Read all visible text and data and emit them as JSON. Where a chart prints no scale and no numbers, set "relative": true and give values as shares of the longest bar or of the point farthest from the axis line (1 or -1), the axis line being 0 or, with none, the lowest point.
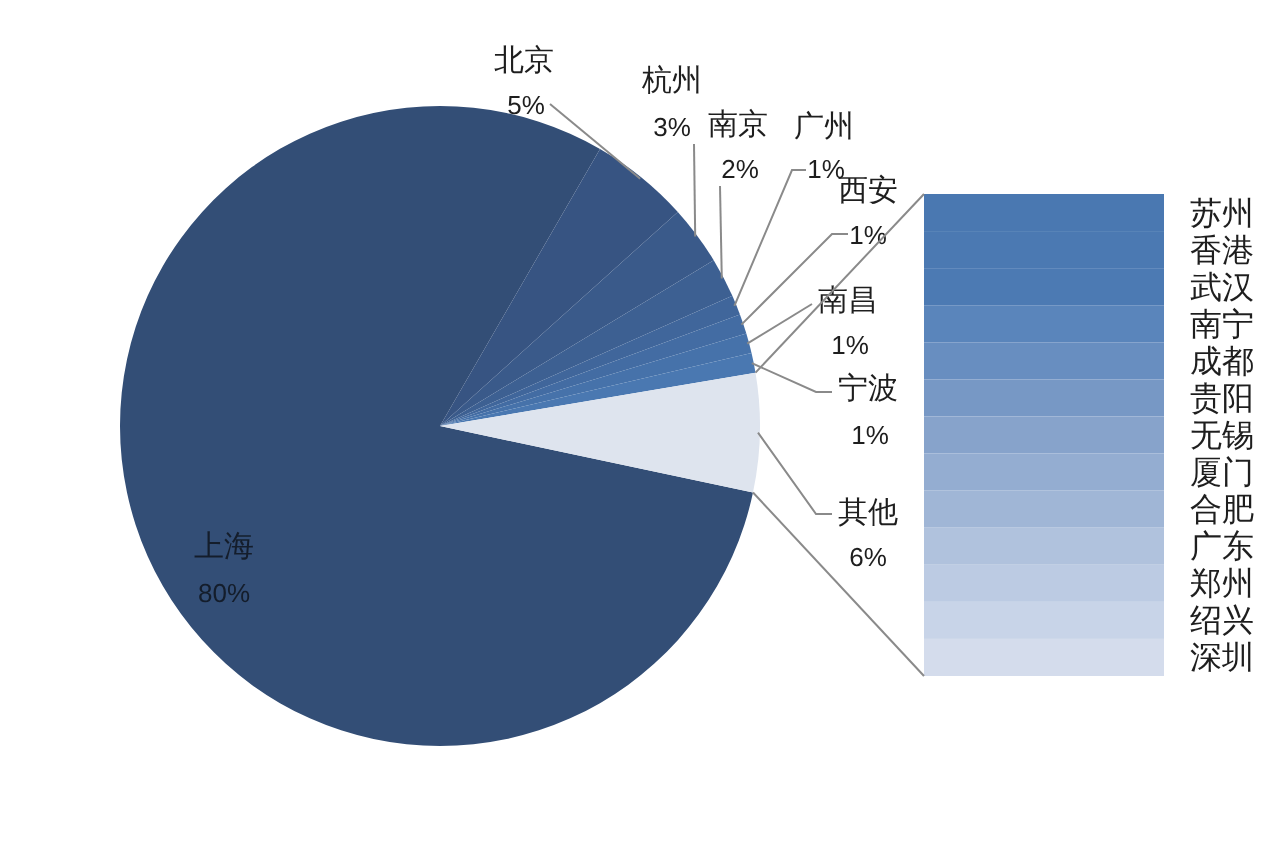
{
  "chart_data": [
    {
      "type": "pie",
      "categories": [
        "上海",
        "北京",
        "杭州",
        "南京",
        "广州",
        "西安",
        "南昌",
        "宁波",
        "其他"
      ],
      "values": [
        80,
        5,
        3,
        2,
        1,
        1,
        1,
        1,
        6
      ],
      "value_labels": [
        "80%",
        "5%",
        "3%",
        "2%",
        "1%",
        "1%",
        "1%",
        "1%",
        "6%"
      ],
      "colors": [
        "#334e76",
        "#375482",
        "#3a5a8a",
        "#3d6092",
        "#40669b",
        "#436ca3",
        "#4672aa",
        "#4a78b1",
        "#dee4ee"
      ]
    },
    {
      "type": "bar",
      "orientation": "horizontal",
      "relative": true,
      "categories": [
        "苏州",
        "香港",
        "武汉",
        "南宁",
        "成都",
        "贵阳",
        "无锡",
        "厦门",
        "合肥",
        "广东",
        "郑州",
        "绍兴",
        "深圳"
      ],
      "values": [
        1,
        1,
        1,
        1,
        1,
        1,
        1,
        1,
        1,
        1,
        1,
        1,
        1
      ],
      "colors": [
        "#4a78b1",
        "#4b79b2",
        "#4c7ab3",
        "#5a85bb",
        "#688ec0",
        "#7798c5",
        "#87a3cb",
        "#94add1",
        "#a0b6d6",
        "#b0c2dd",
        "#bccbe3",
        "#c8d4e8",
        "#d4dcec"
      ]
    }
  ]
}
